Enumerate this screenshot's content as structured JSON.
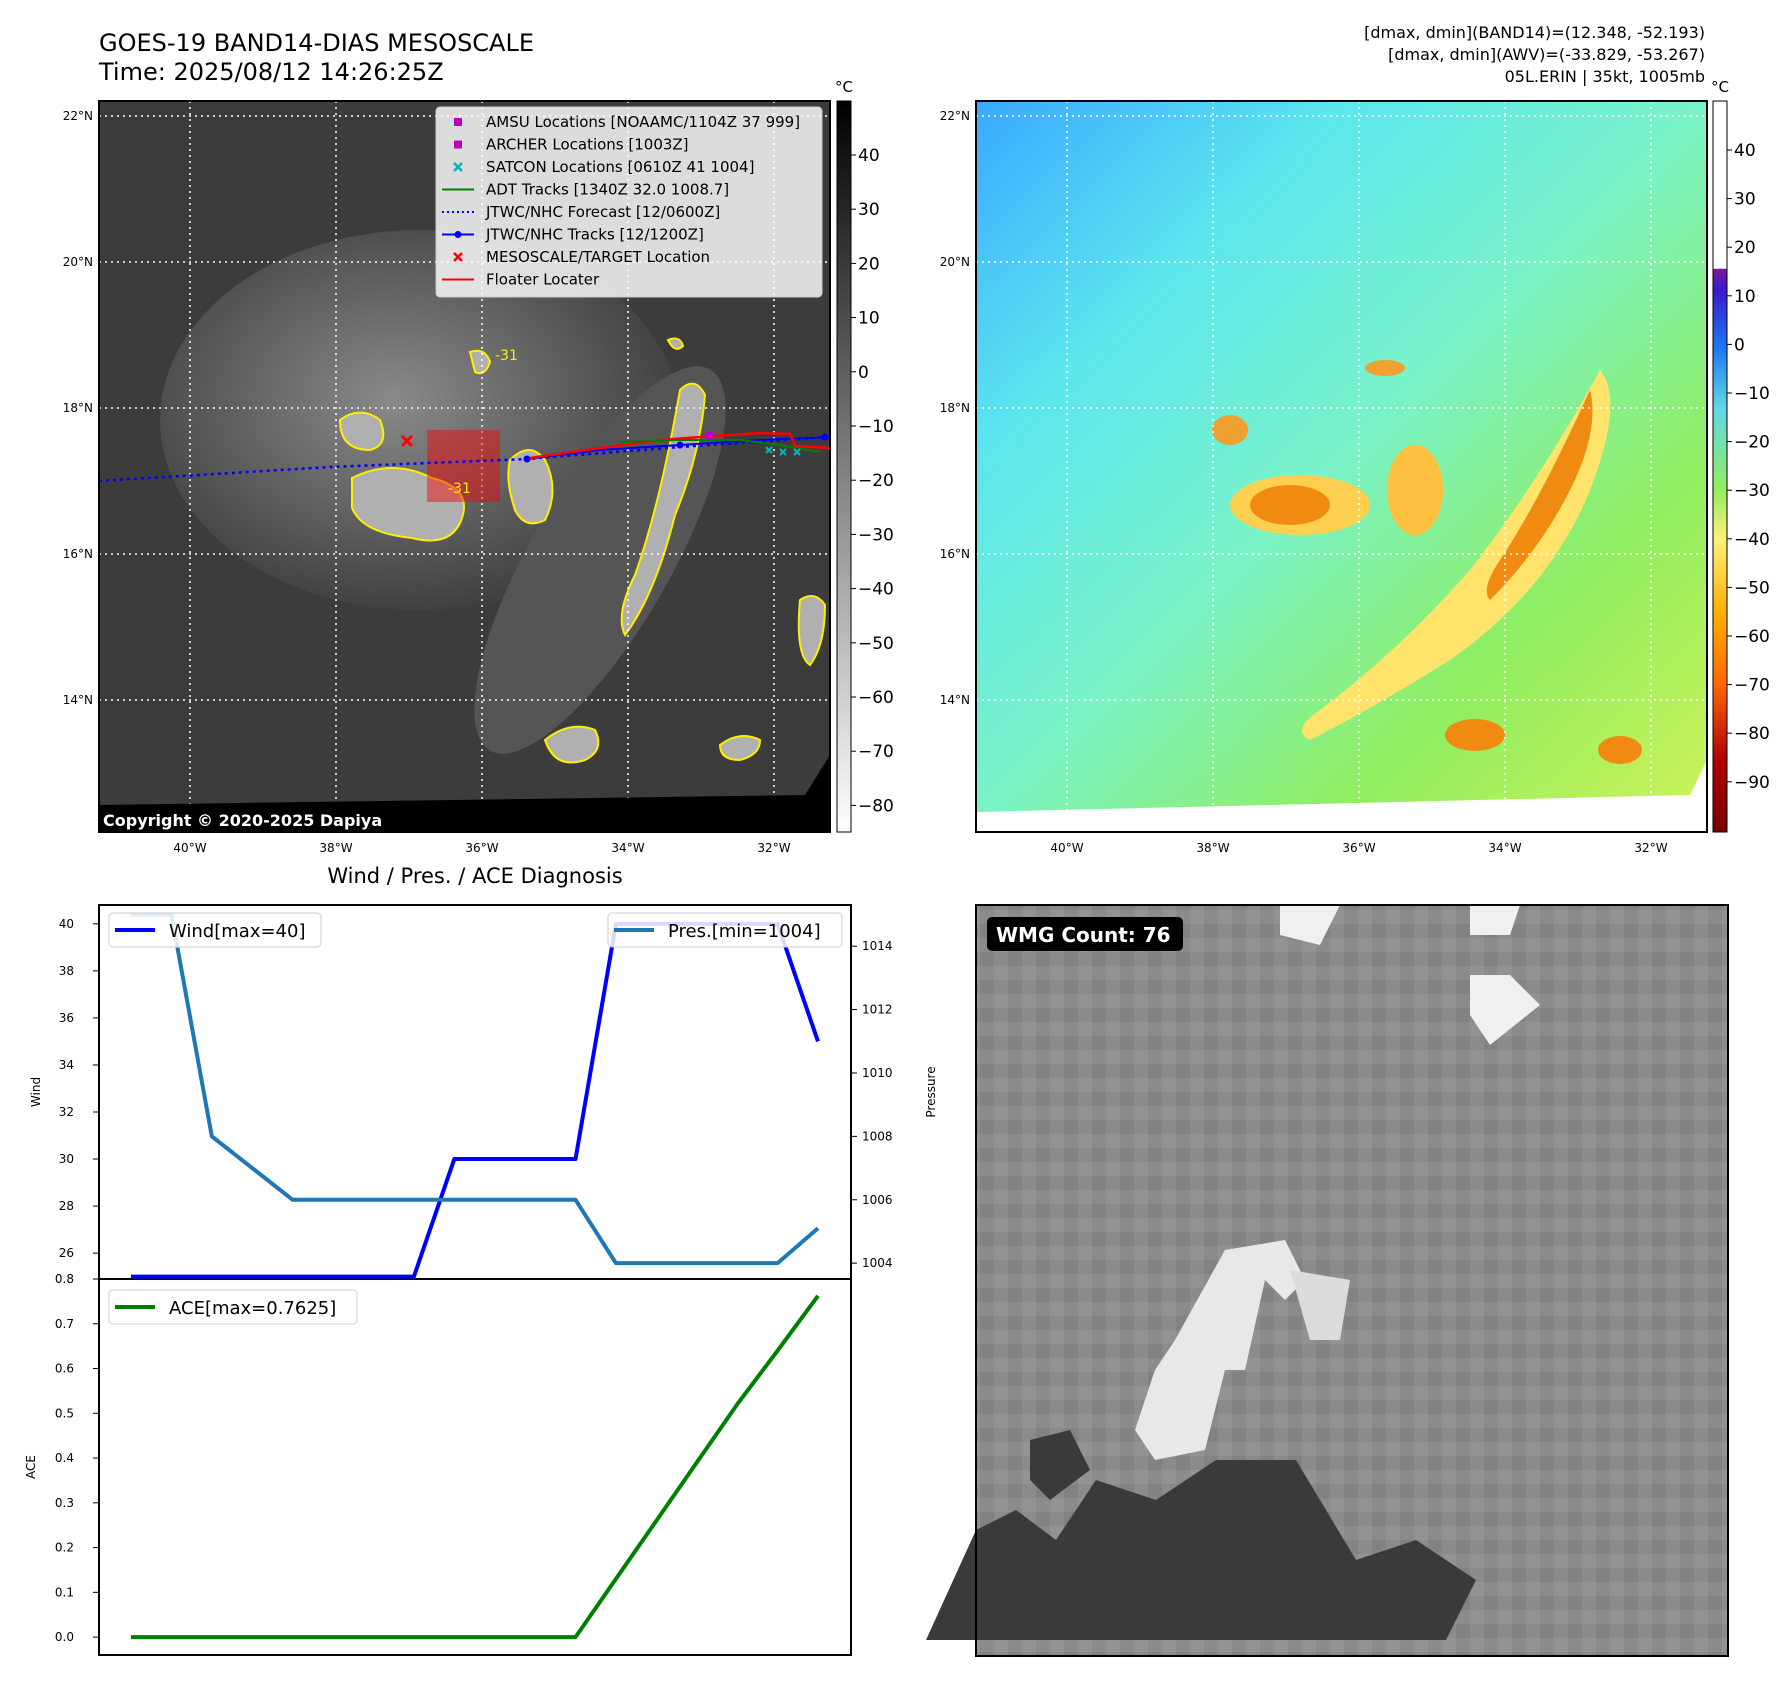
{
  "header": {
    "title_line1": "GOES-19 BAND14-DIAS MESOSCALE",
    "title_line2": "Time: 2025/08/12 14:26:25Z",
    "info_line1": "[dmax, dmin](BAND14)=(12.348, -52.193)",
    "info_line2": "[dmax, dmin](AWV)=(-33.829, -53.267)",
    "info_line3": "05L.ERIN | 35kt, 1005mb"
  },
  "map": {
    "lat_labels": [
      "22°N",
      "20°N",
      "18°N",
      "16°N",
      "14°N"
    ],
    "lon_labels": [
      "40°W",
      "38°W",
      "36°W",
      "34°W",
      "32°W"
    ],
    "copyright": "Copyright © 2020-2025 Dapiya",
    "contour_label": "-31",
    "legend": [
      {
        "label": "AMSU Locations [NOAAMC/1104Z 37 999]",
        "marker": "square",
        "color": "#c000c0"
      },
      {
        "label": "ARCHER Locations [1003Z]",
        "marker": "square",
        "color": "#c000c0"
      },
      {
        "label": "SATCON Locations [0610Z 41 1004]",
        "marker": "x",
        "color": "#00b8b8"
      },
      {
        "label": "ADT Tracks [1340Z 32.0 1008.7]",
        "marker": "line",
        "color": "#008000"
      },
      {
        "label": "JTWC/NHC Forecast [12/0600Z]",
        "marker": "dotted",
        "color": "#0000ff"
      },
      {
        "label": "JTWC/NHC Tracks [12/1200Z]",
        "marker": "line-dot",
        "color": "#0000ff"
      },
      {
        "label": "MESOSCALE/TARGET Location",
        "marker": "x",
        "color": "#ff0000"
      },
      {
        "label": "Floater Locater",
        "marker": "line",
        "color": "#ff0000"
      }
    ]
  },
  "colorbar_ir": {
    "unit": "°C",
    "ticks": [
      "40",
      "30",
      "20",
      "10",
      "0",
      "−10",
      "−20",
      "−30",
      "−40",
      "−50",
      "−60",
      "−70",
      "−80"
    ]
  },
  "colorbar_wv": {
    "unit": "°C",
    "ticks": [
      "40",
      "30",
      "20",
      "10",
      "0",
      "−10",
      "−20",
      "−30",
      "−40",
      "−50",
      "−60",
      "−70",
      "−80",
      "−90"
    ]
  },
  "diagnosis": {
    "title": "Wind / Pres. / ACE Diagnosis",
    "wind_ylabel": "Wind",
    "pres_ylabel": "Pressure",
    "ace_ylabel": "ACE",
    "wind_legend": "Wind[max=40]",
    "pres_legend": "Pres.[min=1004]",
    "ace_legend": "ACE[max=0.7625]",
    "wind_ticks": [
      "40",
      "38",
      "36",
      "34",
      "32",
      "30",
      "28",
      "26"
    ],
    "pres_ticks": [
      "1014",
      "1012",
      "1010",
      "1008",
      "1006",
      "1004"
    ],
    "ace_ticks": [
      "0.8",
      "0.7",
      "0.6",
      "0.5",
      "0.4",
      "0.3",
      "0.2",
      "0.1",
      "0.0"
    ]
  },
  "wmg": {
    "label": "WMG Count: 76"
  },
  "chart_data": [
    {
      "type": "line",
      "title": "Wind / Pres. / ACE Diagnosis",
      "x": [
        0,
        1,
        2,
        3,
        4,
        5,
        6,
        7,
        8,
        9,
        10,
        11,
        12,
        13,
        14,
        15,
        16,
        17
      ],
      "series": [
        {
          "name": "Wind[max=40]",
          "axis": "left",
          "color": "#0000ff",
          "values": [
            25,
            25,
            25,
            25,
            25,
            25,
            25,
            25,
            30,
            30,
            30,
            30,
            40,
            40,
            40,
            40,
            40,
            35
          ]
        },
        {
          "name": "Pres.[min=1004]",
          "axis": "right",
          "color": "#1f77b4",
          "values": [
            1015,
            1015,
            1008,
            1007,
            1006,
            1006,
            1006,
            1006,
            1006,
            1006,
            1006,
            1006,
            1004,
            1004,
            1004,
            1004,
            1004,
            1005.1
          ]
        }
      ],
      "ylabel": "Wind",
      "ylim": [
        24.9,
        40.8
      ],
      "y2label": "Pressure",
      "y2lim": [
        1003.5,
        1015.3
      ]
    },
    {
      "type": "line",
      "x": [
        0,
        1,
        2,
        3,
        4,
        5,
        6,
        7,
        8,
        9,
        10,
        11,
        12,
        13,
        14,
        15,
        16,
        17
      ],
      "series": [
        {
          "name": "ACE[max=0.7625]",
          "color": "#008000",
          "values": [
            0,
            0,
            0,
            0,
            0,
            0,
            0,
            0,
            0,
            0,
            0,
            0,
            0.13,
            0.26,
            0.39,
            0.52,
            0.64,
            0.7625
          ]
        }
      ],
      "ylabel": "ACE",
      "ylim": [
        -0.04,
        0.8
      ]
    }
  ]
}
